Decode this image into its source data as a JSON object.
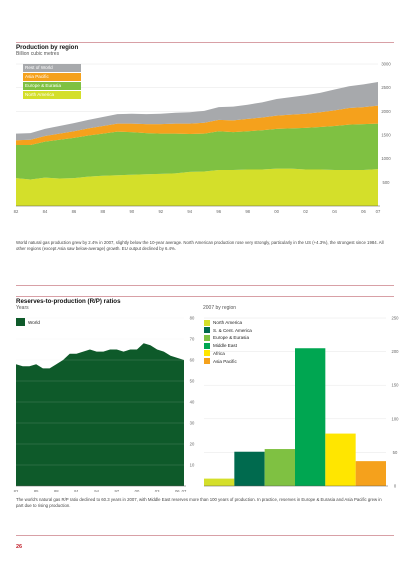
{
  "chart_data": [
    {
      "type": "area",
      "title": "Production by region",
      "ylabel": "Billion cubic metres",
      "categories": [
        "82",
        "83",
        "84",
        "85",
        "86",
        "87",
        "88",
        "89",
        "90",
        "91",
        "92",
        "93",
        "94",
        "95",
        "96",
        "97",
        "98",
        "99",
        "00",
        "01",
        "02",
        "03",
        "04",
        "05",
        "06",
        "07"
      ],
      "ylim": [
        0,
        3000
      ],
      "yticks": [
        500,
        1000,
        1500,
        2000,
        2500,
        3000
      ],
      "stacked": true,
      "series": [
        {
          "name": "North America",
          "color": "#d4df2a",
          "values": [
            590,
            560,
            600,
            580,
            590,
            620,
            640,
            650,
            660,
            670,
            680,
            690,
            720,
            730,
            760,
            760,
            770,
            770,
            790,
            790,
            770,
            770,
            760,
            760,
            760,
            780
          ]
        },
        {
          "name": "Europe & Eurasia",
          "color": "#7fc142",
          "values": [
            700,
            730,
            760,
            820,
            850,
            870,
            890,
            920,
            900,
            870,
            850,
            840,
            800,
            800,
            820,
            800,
            810,
            830,
            840,
            850,
            880,
            900,
            930,
            960,
            970,
            960
          ]
        },
        {
          "name": "Asia Pacific",
          "color": "#f5a11c",
          "values": [
            100,
            110,
            120,
            130,
            140,
            150,
            160,
            170,
            180,
            190,
            200,
            210,
            220,
            230,
            240,
            250,
            260,
            270,
            280,
            290,
            300,
            310,
            330,
            350,
            360,
            380
          ]
        },
        {
          "name": "Rest of World",
          "color": "#a7a9ac",
          "values": [
            140,
            140,
            150,
            160,
            170,
            180,
            190,
            200,
            210,
            210,
            220,
            230,
            240,
            250,
            270,
            290,
            300,
            320,
            350,
            370,
            390,
            410,
            440,
            460,
            480,
            500
          ]
        }
      ],
      "caption": "World natural gas production grew by 2.4% in 2007, slightly below the 10-year average. North American production rose very strongly, particularly in the US (+4.3%), the strongest since 1984. All other regions (except Asia saw below-average) growth. EU output declined by 6.4%."
    },
    {
      "type": "area",
      "title": "Reserves-to-production (R/P) ratios",
      "ylabel": "Years",
      "categories": [
        "82",
        "83",
        "84",
        "85",
        "86",
        "87",
        "88",
        "89",
        "90",
        "91",
        "92",
        "93",
        "94",
        "95",
        "96",
        "97",
        "98",
        "99",
        "00",
        "01",
        "02",
        "03",
        "04",
        "05",
        "06",
        "07"
      ],
      "ylim": [
        0,
        80
      ],
      "yticks": [
        10,
        20,
        30,
        40,
        50,
        60,
        70,
        80
      ],
      "series": [
        {
          "name": "World",
          "color": "#0e5a2a",
          "values": [
            58,
            57,
            57,
            58,
            56,
            56,
            58,
            60,
            63,
            63,
            64,
            65,
            64,
            64,
            65,
            65,
            64,
            65,
            65,
            68,
            67,
            65,
            64,
            62,
            61,
            60
          ]
        }
      ]
    },
    {
      "type": "bar",
      "title": "2007 by region",
      "ylim": [
        0,
        250
      ],
      "yticks": [
        50,
        100,
        150,
        200,
        250
      ],
      "categories": [
        "North America",
        "S. & Cent. America",
        "Europe & Eurasia",
        "Middle East",
        "Africa",
        "Asia Pacific"
      ],
      "values": [
        11,
        51,
        55,
        205,
        78,
        37
      ],
      "colors": [
        "#d4df2a",
        "#006a4e",
        "#7fc142",
        "#00a651",
        "#ffe600",
        "#f5a11c"
      ],
      "caption": "The world's natural gas R/P ratio declined to 60.3 years in 2007, with Middle East reserves more than 100 years of production. In practice, reserves in Europe & Eurasia and Asia Pacific grew in part due to rising production."
    }
  ],
  "page": {
    "number": "26"
  }
}
